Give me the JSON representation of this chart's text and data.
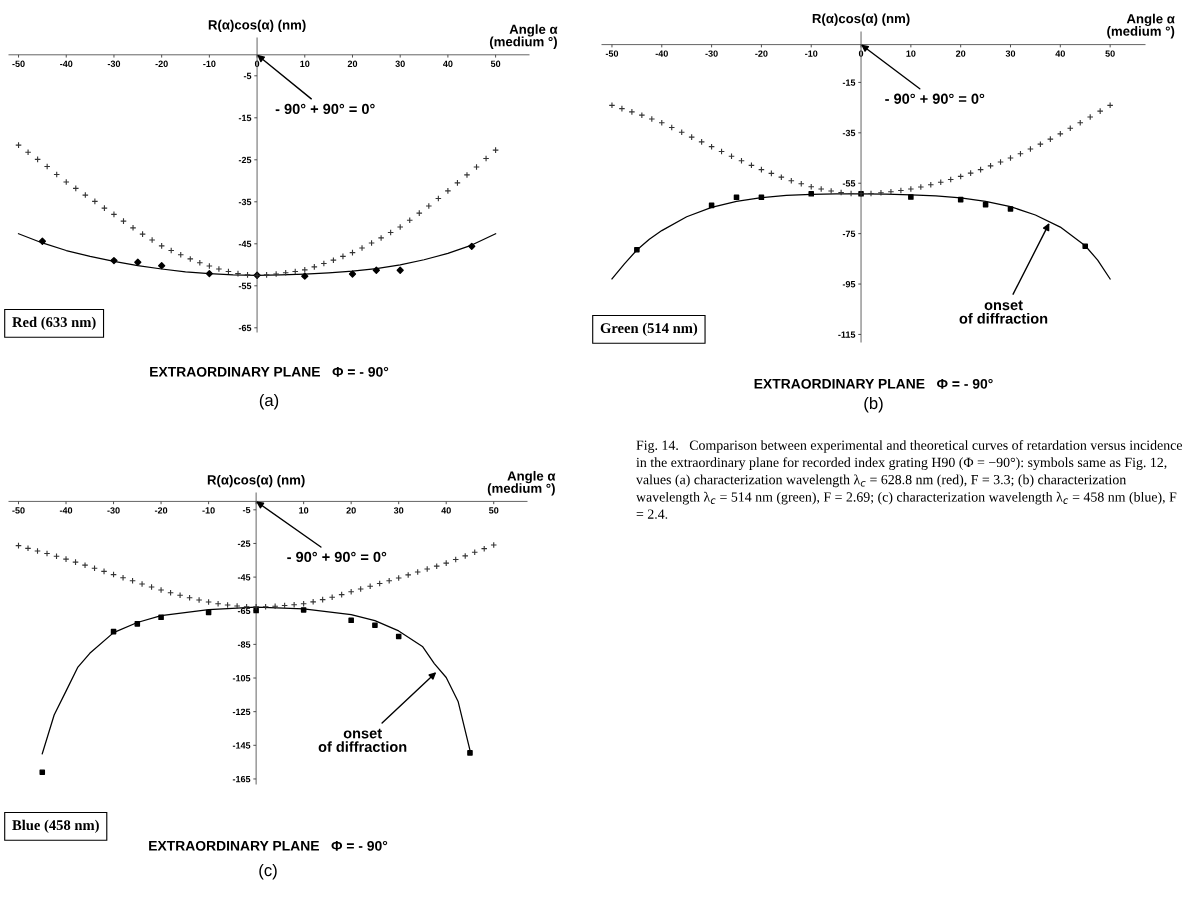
{
  "chart_data": [
    {
      "type": "line",
      "title": "(a)",
      "subtitle": "EXTRAORDINARY PLANE   Φ = - 90°",
      "xlabel": "Angle α\n(medium °)",
      "ylabel": "R(α)cos(α) (nm)",
      "xlim": [
        -52,
        57
      ],
      "ylim": [
        -66,
        4
      ],
      "xticks": [
        -50,
        -40,
        -30,
        -20,
        -10,
        0,
        10,
        20,
        30,
        40,
        50
      ],
      "yticks": [
        -5,
        -15,
        -25,
        -35,
        -45,
        -55,
        -65
      ],
      "grid": false,
      "legend": false,
      "annotations": [
        "Red (633 nm)",
        "- 90° + 90° = 0°"
      ],
      "series": [
        {
          "type": "scatter",
          "marker": "cross",
          "color": "#333333",
          "x": [
            -50,
            -48,
            -46,
            -44,
            -42,
            -40,
            -38,
            -36,
            -34,
            -32,
            -30,
            -28,
            -26,
            -24,
            -22,
            -20,
            -18,
            -16,
            -14,
            -12,
            -10,
            -8,
            -6,
            -4,
            -2,
            0,
            2,
            4,
            6,
            8,
            10,
            12,
            14,
            16,
            18,
            20,
            22,
            24,
            26,
            28,
            30,
            32,
            34,
            36,
            38,
            40,
            42,
            44,
            46,
            48,
            50
          ],
          "values": [
            -21.5,
            -23.2,
            -24.9,
            -26.6,
            -28.5,
            -30.3,
            -31.8,
            -33.4,
            -34.9,
            -36.5,
            -38.0,
            -39.6,
            -41.2,
            -42.7,
            -44.1,
            -45.5,
            -46.6,
            -47.6,
            -48.6,
            -49.5,
            -50.3,
            -51.0,
            -51.6,
            -52.1,
            -52.4,
            -52.5,
            -52.4,
            -52.2,
            -51.9,
            -51.6,
            -51.2,
            -50.5,
            -49.7,
            -48.9,
            -48.0,
            -47.1,
            -46.0,
            -44.8,
            -43.6,
            -42.3,
            -41.0,
            -39.4,
            -37.7,
            -36.0,
            -34.2,
            -32.4,
            -30.5,
            -28.6,
            -26.7,
            -24.7,
            -22.7
          ]
        },
        {
          "type": "line",
          "color": "#000000",
          "x": [
            -50,
            -45,
            -40,
            -35,
            -30,
            -25,
            -20,
            -15,
            -10,
            -5,
            0,
            5,
            10,
            15,
            20,
            25,
            30,
            35,
            40,
            45,
            50
          ],
          "values": [
            -42.6,
            -44.8,
            -46.6,
            -48.0,
            -49.2,
            -50.2,
            -51.0,
            -51.7,
            -52.1,
            -52.4,
            -52.5,
            -52.4,
            -52.2,
            -51.9,
            -51.5,
            -50.9,
            -50.0,
            -48.8,
            -47.3,
            -45.3,
            -42.6
          ]
        },
        {
          "type": "scatter",
          "marker": "diamond",
          "color": "#000000",
          "x": [
            -45,
            -30,
            -25,
            -20,
            -10,
            0,
            10,
            20,
            25,
            30,
            45
          ],
          "values": [
            -44.4,
            -49.0,
            -49.4,
            -50.2,
            -52.1,
            -52.5,
            -52.7,
            -52.2,
            -51.3,
            -51.3,
            -45.6
          ]
        }
      ]
    },
    {
      "type": "line",
      "title": "(b)",
      "subtitle": "EXTRAORDINARY PLANE   Φ = - 90°",
      "xlabel": "Angle α\n(medium °)",
      "ylabel": "R(α)cos(α) (nm)",
      "xlim": [
        -52,
        57
      ],
      "ylim": [
        -118,
        5
      ],
      "xticks": [
        -50,
        -40,
        -30,
        -20,
        -10,
        0,
        10,
        20,
        30,
        40,
        50
      ],
      "yticks": [
        -15,
        -35,
        -55,
        -75,
        -95,
        -115
      ],
      "grid": false,
      "legend": false,
      "annotations": [
        "Green (514 nm)",
        "- 90° + 90° = 0°",
        {
          "text": "onset\nof diffraction",
          "x": 37.8,
          "y": -70.8
        }
      ],
      "series": [
        {
          "type": "scatter",
          "marker": "cross",
          "color": "#333333",
          "x": [
            -50,
            -48,
            -46,
            -44,
            -42,
            -40,
            -38,
            -36,
            -34,
            -32,
            -30,
            -28,
            -26,
            -24,
            -22,
            -20,
            -18,
            -16,
            -14,
            -12,
            -10,
            -8,
            -6,
            -4,
            -2,
            0,
            2,
            4,
            6,
            8,
            10,
            12,
            14,
            16,
            18,
            20,
            22,
            24,
            26,
            28,
            30,
            32,
            34,
            36,
            38,
            40,
            42,
            44,
            46,
            48,
            50
          ],
          "values": [
            -24.1,
            -25.4,
            -26.7,
            -28.0,
            -29.5,
            -31.0,
            -32.9,
            -34.8,
            -36.7,
            -38.6,
            -40.5,
            -42.4,
            -44.3,
            -46.1,
            -47.9,
            -49.6,
            -51.1,
            -52.6,
            -54.0,
            -55.2,
            -56.4,
            -57.3,
            -58.1,
            -58.7,
            -59.1,
            -59.2,
            -59.1,
            -58.8,
            -58.4,
            -57.9,
            -57.3,
            -56.5,
            -55.6,
            -54.6,
            -53.5,
            -52.3,
            -51.0,
            -49.6,
            -48.1,
            -46.6,
            -45.0,
            -43.3,
            -41.4,
            -39.5,
            -37.5,
            -35.4,
            -33.2,
            -31.0,
            -28.7,
            -26.4,
            -24.1
          ]
        },
        {
          "type": "line",
          "color": "#000000",
          "x": [
            -50,
            -47.5,
            -45,
            -42.5,
            -40,
            -35,
            -30,
            -25,
            -20,
            -15,
            -10,
            -5,
            0,
            5,
            10,
            15,
            20,
            25,
            30,
            35,
            40,
            45,
            47.5,
            50
          ],
          "values": [
            -93,
            -87,
            -81.5,
            -77.2,
            -73.8,
            -68.3,
            -64.6,
            -62.2,
            -60.7,
            -59.8,
            -59.4,
            -59.2,
            -59.2,
            -59.3,
            -59.6,
            -60.0,
            -60.8,
            -62.2,
            -64.3,
            -67.6,
            -72.4,
            -79.8,
            -85.5,
            -93
          ]
        },
        {
          "type": "scatter",
          "marker": "square",
          "color": "#000000",
          "x": [
            -45,
            -30,
            -25,
            -20,
            -10,
            0,
            10,
            20,
            25,
            30,
            45
          ],
          "values": [
            -81.4,
            -63.8,
            -60.6,
            -60.6,
            -59.2,
            -59.2,
            -60.5,
            -61.5,
            -63.5,
            -65.2,
            -80
          ]
        }
      ]
    },
    {
      "type": "line",
      "title": "(c)",
      "subtitle": "EXTRAORDINARY PLANE   Φ = - 90°",
      "xlabel": "Angle α\n(medium °)",
      "ylabel": "R(α)cos(α) (nm)",
      "xlim": [
        -52,
        57
      ],
      "ylim": [
        -168,
        5
      ],
      "xticks": [
        -50,
        -40,
        -30,
        -20,
        -10,
        {
          "value": 0,
          "label": null
        },
        10,
        20,
        30,
        40,
        50
      ],
      "yticks": [
        -5,
        -25,
        -45,
        -65,
        -85,
        -105,
        -125,
        -145,
        -165
      ],
      "grid": false,
      "legend": false,
      "annotations": [
        "Blue (458 nm)",
        "- 90° + 90° = 0°",
        {
          "text": "onset\nof diffraction",
          "x": 37.9,
          "y": -101.5
        }
      ],
      "series": [
        {
          "type": "scatter",
          "marker": "cross",
          "color": "#333333",
          "x": [
            -50,
            -48,
            -46,
            -44,
            -42,
            -40,
            -38,
            -36,
            -34,
            -32,
            -30,
            -28,
            -26,
            -24,
            -22,
            -20,
            -18,
            -16,
            -14,
            -12,
            -10,
            -8,
            -6,
            -4,
            -2,
            0,
            2,
            4,
            6,
            8,
            10,
            12,
            14,
            16,
            18,
            20,
            22,
            24,
            26,
            28,
            30,
            32,
            34,
            36,
            38,
            40,
            42,
            44,
            46,
            48,
            50
          ],
          "values": [
            -26.3,
            -27.9,
            -29.5,
            -31.0,
            -32.6,
            -34.3,
            -36.1,
            -37.9,
            -39.7,
            -41.6,
            -43.5,
            -45.4,
            -47.2,
            -49.1,
            -50.9,
            -52.7,
            -54.3,
            -55.8,
            -57.3,
            -58.6,
            -59.8,
            -60.8,
            -61.6,
            -62.2,
            -62.6,
            -62.7,
            -62.6,
            -62.3,
            -61.9,
            -61.4,
            -60.8,
            -59.7,
            -58.4,
            -57.0,
            -55.4,
            -53.7,
            -52.1,
            -50.4,
            -48.8,
            -47.2,
            -45.5,
            -43.7,
            -42.0,
            -40.2,
            -38.5,
            -36.7,
            -34.5,
            -32.4,
            -30.2,
            -28.1,
            -25.9
          ]
        },
        {
          "type": "line",
          "color": "#000000",
          "x": [
            -45,
            -42.5,
            -40,
            -37.5,
            -35,
            -30,
            -25,
            -20,
            -10,
            0,
            10,
            20,
            25,
            30,
            35,
            37.5,
            40,
            42.5,
            45
          ],
          "values": [
            -150,
            -127,
            -112.8,
            -98.5,
            -90.3,
            -78,
            -72,
            -67.9,
            -64.3,
            -62.9,
            -63.9,
            -67.3,
            -70.9,
            -77,
            -86.2,
            -96.4,
            -104.7,
            -118.9,
            -148
          ]
        },
        {
          "type": "scatter",
          "marker": "square",
          "color": "#000000",
          "x": [
            -45,
            -30,
            -25,
            -20,
            -10,
            0,
            10,
            20,
            25,
            30,
            45
          ],
          "values": [
            -161,
            -77.4,
            -72.8,
            -68.9,
            -66.0,
            -64.9,
            -64.5,
            -70.7,
            -73.6,
            -80.3,
            -149.5
          ]
        }
      ]
    },
    {
      "type": "other",
      "annotations": [
        "Fig. 14.   Comparison between experimental and theoretical curves of retardation versus incidence in the extraordinary plane for recorded index grating H90 (Φ = −90°): symbols same as Fig. 12, values (a) characterization wavelength λ$_{c}$ = 628.8 nm (red), F = 3.3; (b) characterization wavelength λ$_{c}$ = 514 nm (green), F = 2.69; (c) characterization wavelength λ$_{c}$ = 458 nm (blue), F = 2.4."
      ]
    }
  ]
}
